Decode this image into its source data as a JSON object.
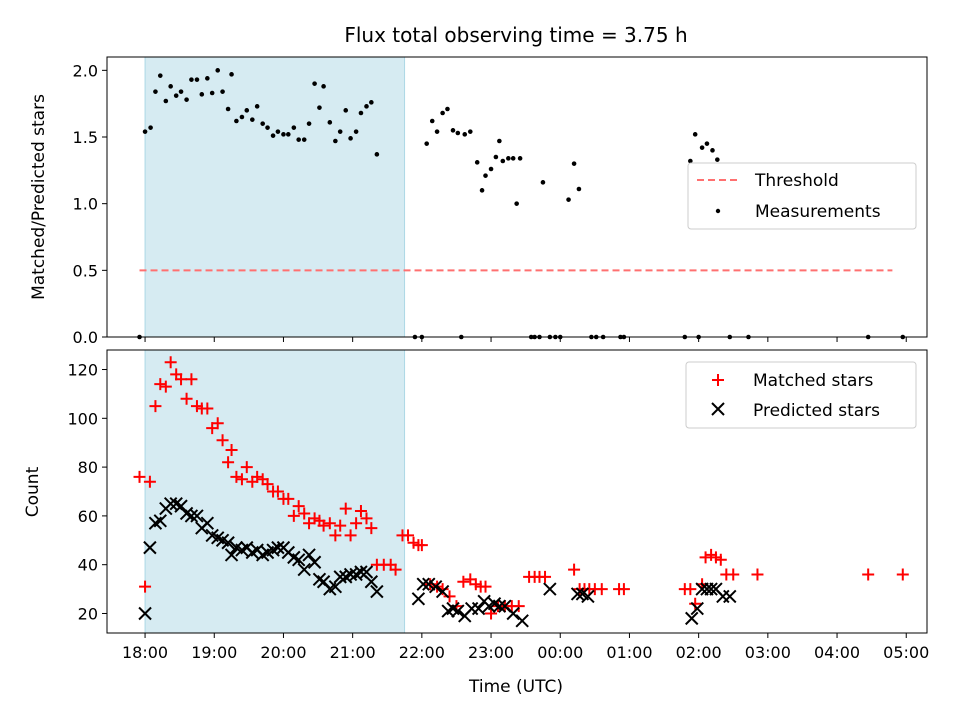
{
  "chart_data": {
    "title": "Flux total observing time = 3.75 h",
    "xlabel": "Time (UTC)",
    "x_unit": "hours after 18:00 UTC",
    "xlim": [
      -0.55,
      11.3
    ],
    "x_ticks": [
      {
        "v": 0,
        "label": "18:00"
      },
      {
        "v": 1,
        "label": "19:00"
      },
      {
        "v": 2,
        "label": "20:00"
      },
      {
        "v": 3,
        "label": "21:00"
      },
      {
        "v": 4,
        "label": "22:00"
      },
      {
        "v": 5,
        "label": "23:00"
      },
      {
        "v": 6,
        "label": "00:00"
      },
      {
        "v": 7,
        "label": "01:00"
      },
      {
        "v": 8,
        "label": "02:00"
      },
      {
        "v": 9,
        "label": "03:00"
      },
      {
        "v": 10,
        "label": "04:00"
      },
      {
        "v": 11,
        "label": "05:00"
      }
    ],
    "observing_window": [
      0,
      3.75
    ],
    "colors": {
      "window": "#add8e6",
      "threshold": "#ff7070",
      "measurements": "#000000",
      "matched": "#ff0000",
      "predicted": "#000000"
    },
    "top": {
      "type": "scatter",
      "ylabel": "Matched/Predicted stars",
      "ylim": [
        0,
        2.1
      ],
      "y_ticks": [
        0.0,
        0.5,
        1.0,
        1.5,
        2.0
      ],
      "y_tick_labels": [
        "0.0",
        "0.5",
        "1.0",
        "1.5",
        "2.0"
      ],
      "threshold": {
        "name": "Threshold",
        "value": 0.5,
        "x_range": [
          -0.08,
          10.8
        ]
      },
      "legend": [
        "Threshold",
        "Measurements"
      ],
      "measurements": [
        [
          -0.08,
          0.0
        ],
        [
          0.0,
          1.54
        ],
        [
          0.08,
          1.57
        ],
        [
          0.15,
          1.84
        ],
        [
          0.22,
          1.96
        ],
        [
          0.3,
          1.77
        ],
        [
          0.37,
          1.88
        ],
        [
          0.45,
          1.81
        ],
        [
          0.52,
          1.84
        ],
        [
          0.6,
          1.78
        ],
        [
          0.67,
          1.93
        ],
        [
          0.75,
          1.93
        ],
        [
          0.82,
          1.82
        ],
        [
          0.9,
          1.94
        ],
        [
          0.97,
          1.83
        ],
        [
          1.05,
          2.0
        ],
        [
          1.12,
          1.84
        ],
        [
          1.2,
          1.71
        ],
        [
          1.25,
          1.97
        ],
        [
          1.32,
          1.62
        ],
        [
          1.4,
          1.65
        ],
        [
          1.47,
          1.7
        ],
        [
          1.55,
          1.63
        ],
        [
          1.62,
          1.73
        ],
        [
          1.7,
          1.6
        ],
        [
          1.77,
          1.57
        ],
        [
          1.85,
          1.51
        ],
        [
          1.92,
          1.54
        ],
        [
          2.0,
          1.52
        ],
        [
          2.07,
          1.52
        ],
        [
          2.15,
          1.57
        ],
        [
          2.22,
          1.48
        ],
        [
          2.3,
          1.48
        ],
        [
          2.37,
          1.6
        ],
        [
          2.45,
          1.9
        ],
        [
          2.52,
          1.72
        ],
        [
          2.58,
          1.88
        ],
        [
          2.67,
          1.61
        ],
        [
          2.75,
          1.47
        ],
        [
          2.82,
          1.54
        ],
        [
          2.9,
          1.7
        ],
        [
          2.97,
          1.49
        ],
        [
          3.05,
          1.54
        ],
        [
          3.12,
          1.68
        ],
        [
          3.2,
          1.73
        ],
        [
          3.27,
          1.76
        ],
        [
          3.35,
          1.37
        ],
        [
          3.9,
          0.0
        ],
        [
          4.0,
          0.0
        ],
        [
          4.07,
          1.45
        ],
        [
          4.15,
          1.62
        ],
        [
          4.22,
          1.54
        ],
        [
          4.3,
          1.68
        ],
        [
          4.37,
          1.71
        ],
        [
          4.45,
          1.55
        ],
        [
          4.52,
          1.53
        ],
        [
          4.57,
          0.0
        ],
        [
          4.62,
          1.52
        ],
        [
          4.7,
          1.54
        ],
        [
          4.8,
          1.31
        ],
        [
          4.87,
          1.1
        ],
        [
          4.92,
          1.21
        ],
        [
          5.0,
          1.26
        ],
        [
          5.07,
          1.35
        ],
        [
          5.12,
          1.47
        ],
        [
          5.17,
          1.32
        ],
        [
          5.25,
          1.34
        ],
        [
          5.32,
          1.34
        ],
        [
          5.37,
          1.0
        ],
        [
          5.42,
          1.34
        ],
        [
          5.58,
          0.0
        ],
        [
          5.63,
          0.0
        ],
        [
          5.7,
          0.0
        ],
        [
          5.75,
          1.16
        ],
        [
          5.85,
          0.0
        ],
        [
          5.93,
          0.0
        ],
        [
          6.0,
          0.0
        ],
        [
          6.12,
          1.03
        ],
        [
          6.2,
          1.3
        ],
        [
          6.27,
          1.11
        ],
        [
          6.45,
          0.0
        ],
        [
          6.52,
          0.0
        ],
        [
          6.62,
          0.0
        ],
        [
          6.87,
          0.0
        ],
        [
          6.92,
          0.0
        ],
        [
          7.8,
          0.0
        ],
        [
          7.88,
          1.32
        ],
        [
          7.95,
          1.52
        ],
        [
          8.0,
          0.0
        ],
        [
          8.05,
          1.42
        ],
        [
          8.12,
          1.45
        ],
        [
          8.2,
          1.4
        ],
        [
          8.27,
          1.33
        ],
        [
          8.45,
          0.0
        ],
        [
          8.72,
          0.0
        ],
        [
          10.45,
          0.0
        ],
        [
          10.95,
          0.0
        ]
      ]
    },
    "bottom": {
      "type": "scatter",
      "ylabel": "Count",
      "ylim": [
        12,
        128
      ],
      "y_ticks": [
        20,
        40,
        60,
        80,
        100,
        120
      ],
      "y_tick_labels": [
        "20",
        "40",
        "60",
        "80",
        "100",
        "120"
      ],
      "legend": [
        "Matched stars",
        "Predicted stars"
      ],
      "series": [
        {
          "name": "Matched stars",
          "marker": "plus",
          "points": [
            [
              -0.08,
              76
            ],
            [
              0.0,
              31
            ],
            [
              0.07,
              74
            ],
            [
              0.15,
              105
            ],
            [
              0.22,
              114
            ],
            [
              0.3,
              113
            ],
            [
              0.37,
              123
            ],
            [
              0.45,
              118
            ],
            [
              0.52,
              116
            ],
            [
              0.6,
              108
            ],
            [
              0.67,
              116
            ],
            [
              0.75,
              105
            ],
            [
              0.82,
              104
            ],
            [
              0.9,
              104
            ],
            [
              0.97,
              96
            ],
            [
              1.05,
              98
            ],
            [
              1.12,
              91
            ],
            [
              1.2,
              82
            ],
            [
              1.25,
              87
            ],
            [
              1.32,
              76
            ],
            [
              1.4,
              75
            ],
            [
              1.47,
              80
            ],
            [
              1.55,
              74
            ],
            [
              1.62,
              76
            ],
            [
              1.7,
              75
            ],
            [
              1.77,
              73
            ],
            [
              1.85,
              70
            ],
            [
              1.92,
              70
            ],
            [
              2.0,
              67
            ],
            [
              2.07,
              67
            ],
            [
              2.15,
              60
            ],
            [
              2.22,
              64
            ],
            [
              2.3,
              61
            ],
            [
              2.37,
              57
            ],
            [
              2.45,
              59
            ],
            [
              2.52,
              58
            ],
            [
              2.58,
              56
            ],
            [
              2.67,
              57
            ],
            [
              2.75,
              52
            ],
            [
              2.82,
              56
            ],
            [
              2.9,
              63
            ],
            [
              2.97,
              52
            ],
            [
              3.05,
              57
            ],
            [
              3.12,
              62
            ],
            [
              3.2,
              59
            ],
            [
              3.27,
              55
            ],
            [
              3.35,
              40
            ],
            [
              3.45,
              40
            ],
            [
              3.55,
              40
            ],
            [
              3.62,
              38
            ],
            [
              3.72,
              52
            ],
            [
              3.8,
              52
            ],
            [
              3.88,
              49
            ],
            [
              3.95,
              48
            ],
            [
              4.0,
              48
            ],
            [
              4.12,
              32
            ],
            [
              4.22,
              31
            ],
            [
              4.3,
              30
            ],
            [
              4.4,
              27
            ],
            [
              4.5,
              23
            ],
            [
              4.6,
              33
            ],
            [
              4.7,
              34
            ],
            [
              4.78,
              32
            ],
            [
              4.85,
              31
            ],
            [
              4.92,
              31
            ],
            [
              5.0,
              20
            ],
            [
              5.1,
              23
            ],
            [
              5.2,
              23
            ],
            [
              5.3,
              23
            ],
            [
              5.4,
              23
            ],
            [
              5.55,
              35
            ],
            [
              5.63,
              35
            ],
            [
              5.7,
              35
            ],
            [
              5.78,
              35
            ],
            [
              6.2,
              38
            ],
            [
              6.28,
              30
            ],
            [
              6.35,
              30
            ],
            [
              6.42,
              30
            ],
            [
              6.5,
              30
            ],
            [
              6.6,
              30
            ],
            [
              6.85,
              30
            ],
            [
              6.92,
              30
            ],
            [
              7.8,
              30
            ],
            [
              7.88,
              30
            ],
            [
              7.95,
              24
            ],
            [
              8.05,
              32
            ],
            [
              8.1,
              43
            ],
            [
              8.18,
              44
            ],
            [
              8.25,
              43
            ],
            [
              8.32,
              42
            ],
            [
              8.4,
              36
            ],
            [
              8.5,
              36
            ],
            [
              8.85,
              36
            ],
            [
              10.45,
              36
            ],
            [
              10.95,
              36
            ]
          ]
        },
        {
          "name": "Predicted stars",
          "marker": "x",
          "points": [
            [
              0.0,
              20
            ],
            [
              0.07,
              47
            ],
            [
              0.15,
              57
            ],
            [
              0.22,
              58
            ],
            [
              0.3,
              63
            ],
            [
              0.37,
              65
            ],
            [
              0.45,
              65
            ],
            [
              0.52,
              64
            ],
            [
              0.6,
              61
            ],
            [
              0.67,
              60
            ],
            [
              0.75,
              60
            ],
            [
              0.82,
              55
            ],
            [
              0.9,
              57
            ],
            [
              0.97,
              52
            ],
            [
              1.05,
              51
            ],
            [
              1.12,
              50
            ],
            [
              1.2,
              49
            ],
            [
              1.25,
              44
            ],
            [
              1.32,
              47
            ],
            [
              1.4,
              46
            ],
            [
              1.47,
              47
            ],
            [
              1.55,
              45
            ],
            [
              1.62,
              46
            ],
            [
              1.7,
              44
            ],
            [
              1.77,
              45
            ],
            [
              1.85,
              46
            ],
            [
              1.92,
              47
            ],
            [
              2.0,
              47
            ],
            [
              2.07,
              45
            ],
            [
              2.15,
              43
            ],
            [
              2.22,
              42
            ],
            [
              2.3,
              38
            ],
            [
              2.37,
              44
            ],
            [
              2.45,
              41
            ],
            [
              2.52,
              34
            ],
            [
              2.58,
              33
            ],
            [
              2.67,
              30
            ],
            [
              2.75,
              31
            ],
            [
              2.82,
              35
            ],
            [
              2.9,
              35
            ],
            [
              2.97,
              36
            ],
            [
              3.05,
              36
            ],
            [
              3.12,
              37
            ],
            [
              3.2,
              37
            ],
            [
              3.27,
              33
            ],
            [
              3.35,
              29
            ],
            [
              3.95,
              26
            ],
            [
              4.02,
              32
            ],
            [
              4.1,
              32
            ],
            [
              4.2,
              31
            ],
            [
              4.3,
              29
            ],
            [
              4.38,
              21
            ],
            [
              4.45,
              22
            ],
            [
              4.52,
              21
            ],
            [
              4.62,
              19
            ],
            [
              4.72,
              22
            ],
            [
              4.82,
              22
            ],
            [
              4.9,
              25
            ],
            [
              4.97,
              23
            ],
            [
              5.05,
              24
            ],
            [
              5.12,
              23
            ],
            [
              5.2,
              23
            ],
            [
              5.32,
              20
            ],
            [
              5.45,
              17
            ],
            [
              5.85,
              30
            ],
            [
              6.25,
              28
            ],
            [
              6.32,
              28
            ],
            [
              6.4,
              27
            ],
            [
              7.9,
              18
            ],
            [
              7.98,
              22
            ],
            [
              8.05,
              30
            ],
            [
              8.12,
              30
            ],
            [
              8.18,
              30
            ],
            [
              8.25,
              30
            ],
            [
              8.35,
              27
            ],
            [
              8.45,
              27
            ]
          ]
        }
      ]
    }
  }
}
